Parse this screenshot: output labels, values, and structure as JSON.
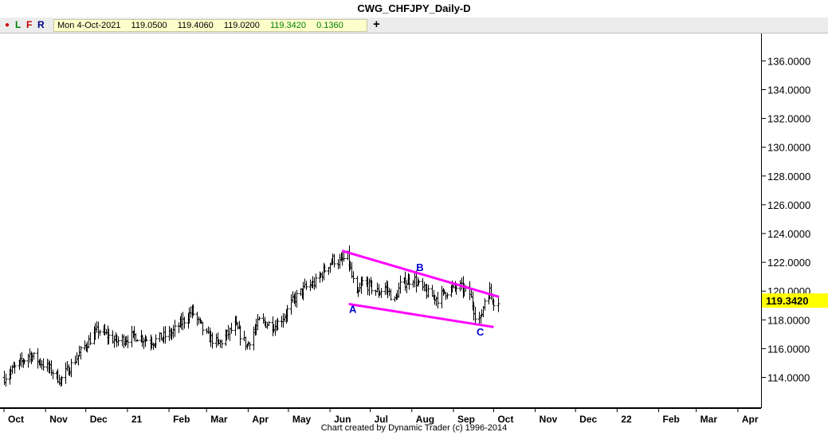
{
  "window": {
    "title": "CWG_CHFJPY_Daily-D"
  },
  "toolbar": {
    "buttons": [
      {
        "label": "L",
        "color": "#008000"
      },
      {
        "label": "F",
        "color": "#c00000"
      },
      {
        "label": "R",
        "color": "#000080"
      }
    ],
    "readout": {
      "date": "Mon 4-Oct-2021",
      "open": "119.0500",
      "high": "119.4060",
      "low": "119.0200",
      "close": "119.3420",
      "change": "0.1360"
    },
    "plus_label": "+"
  },
  "footer": {
    "credit": "Chart created by Dynamic Trader  (c) 1996-2014"
  },
  "colors": {
    "bars": "#000000",
    "channel": "#ff00ff",
    "wave_labels": "#0000cc",
    "price_tag": "#ffff00"
  },
  "chart_data": {
    "type": "ohlc",
    "title": "CWG_CHFJPY_Daily-D",
    "ylim": [
      113.0,
      137.6
    ],
    "price_ticks": [
      "114.0000",
      "116.0000",
      "118.0000",
      "120.0000",
      "122.0000",
      "124.0000",
      "126.0000",
      "128.0000",
      "130.0000",
      "132.0000",
      "134.0000",
      "136.0000"
    ],
    "last_price": "119.3420",
    "months": [
      "Oct",
      "Nov",
      "Dec",
      "21",
      "Feb",
      "Mar",
      "Apr",
      "May",
      "Jun",
      "Jul",
      "Aug",
      "Sep",
      "Oct",
      "Nov",
      "Dec",
      "22",
      "Feb",
      "Mar",
      "Apr"
    ],
    "anchors": [
      [
        "2020-10-01",
        114.0
      ],
      [
        "2020-10-20",
        115.6
      ],
      [
        "2020-11-05",
        114.5
      ],
      [
        "2020-11-12",
        113.8
      ],
      [
        "2020-12-01",
        116.3
      ],
      [
        "2020-12-10",
        117.3
      ],
      [
        "2020-12-24",
        116.5
      ],
      [
        "2021-01-06",
        116.9
      ],
      [
        "2021-01-20",
        116.5
      ],
      [
        "2021-02-03",
        117.1
      ],
      [
        "2021-02-18",
        118.6
      ],
      [
        "2021-03-01",
        116.9
      ],
      [
        "2021-03-10",
        116.3
      ],
      [
        "2021-03-22",
        117.6
      ],
      [
        "2021-03-31",
        116.2
      ],
      [
        "2021-04-09",
        117.9
      ],
      [
        "2021-04-21",
        117.6
      ],
      [
        "2021-04-28",
        118.3
      ],
      [
        "2021-05-04",
        119.3
      ],
      [
        "2021-05-13",
        120.2
      ],
      [
        "2021-05-21",
        120.6
      ],
      [
        "2021-05-28",
        121.5
      ],
      [
        "2021-06-03",
        122.2
      ],
      [
        "2021-06-08",
        122.0
      ],
      [
        "2021-06-14",
        122.4
      ],
      [
        "2021-06-17",
        121.0
      ],
      [
        "2021-06-21",
        119.6
      ],
      [
        "2021-06-25",
        120.6
      ],
      [
        "2021-07-01",
        120.3
      ],
      [
        "2021-07-07",
        119.9
      ],
      [
        "2021-07-12",
        120.3
      ],
      [
        "2021-07-19",
        119.3
      ],
      [
        "2021-07-23",
        120.4
      ],
      [
        "2021-08-02",
        120.9
      ],
      [
        "2021-08-06",
        120.4
      ],
      [
        "2021-08-13",
        119.8
      ],
      [
        "2021-08-20",
        119.5
      ],
      [
        "2021-08-25",
        119.9
      ],
      [
        "2021-08-31",
        120.2
      ],
      [
        "2021-09-06",
        120.3
      ],
      [
        "2021-09-13",
        119.8
      ],
      [
        "2021-09-17",
        118.4
      ],
      [
        "2021-09-21",
        118.0
      ],
      [
        "2021-09-24",
        119.4
      ],
      [
        "2021-09-28",
        120.0
      ],
      [
        "2021-10-01",
        119.3
      ],
      [
        "2021-10-04",
        119.342
      ]
    ],
    "channel": {
      "upper": [
        [
          "2021-06-10",
          122.8
        ],
        [
          "2021-10-05",
          119.6
        ]
      ],
      "lower": [
        [
          "2021-06-15",
          119.1
        ],
        [
          "2021-10-01",
          117.5
        ]
      ]
    },
    "wave_labels": [
      {
        "label": "A",
        "date": "2021-06-18",
        "price": 118.5
      },
      {
        "label": "B",
        "date": "2021-08-07",
        "price": 121.4
      },
      {
        "label": "C",
        "date": "2021-09-21",
        "price": 116.9
      }
    ]
  }
}
